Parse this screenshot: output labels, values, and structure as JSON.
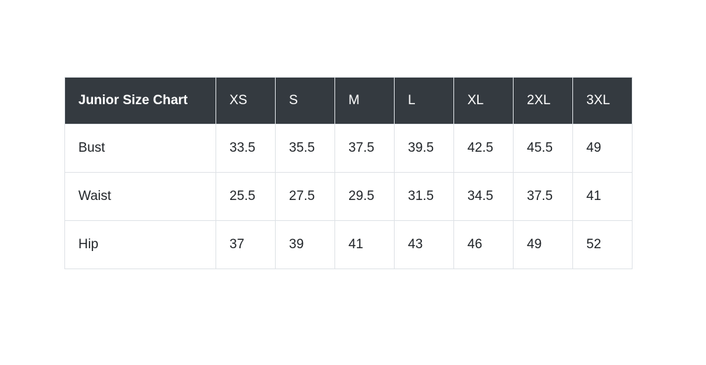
{
  "chart_data": {
    "type": "table",
    "title": "Junior Size Chart",
    "columns": [
      "XS",
      "S",
      "M",
      "L",
      "XL",
      "2XL",
      "3XL"
    ],
    "rows": [
      {
        "label": "Bust",
        "values": [
          "33.5",
          "35.5",
          "37.5",
          "39.5",
          "42.5",
          "45.5",
          "49"
        ]
      },
      {
        "label": "Waist",
        "values": [
          "25.5",
          "27.5",
          "29.5",
          "31.5",
          "34.5",
          "37.5",
          "41"
        ]
      },
      {
        "label": "Hip",
        "values": [
          "37",
          "39",
          "41",
          "43",
          "46",
          "49",
          "52"
        ]
      }
    ]
  },
  "colors": {
    "page_bg": "#ffffff",
    "header_bg": "#343a40",
    "header_text": "#ffffff",
    "body_text": "#212529",
    "border": "#dee2e6"
  }
}
